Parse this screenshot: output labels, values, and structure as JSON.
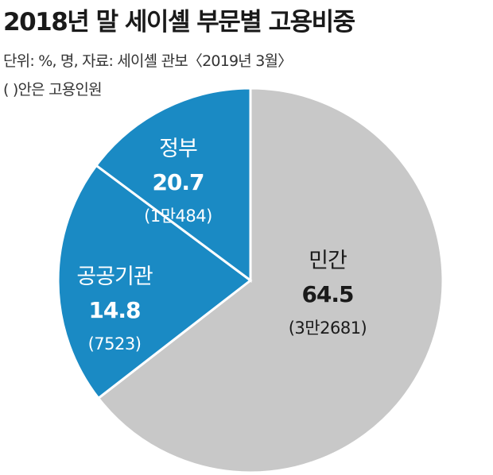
{
  "header": {
    "title": "2018년 말 세이셸 부문별 고용비중",
    "unit_source": "단위: %, 명, 자료: 세이셸 관보〈2019년 3월〉",
    "note": "(   )안은 고용인원"
  },
  "colors": {
    "private": "#c8c8c8",
    "public": "#1a8ac4",
    "divider": "#ffffff"
  },
  "chart_data": {
    "type": "pie",
    "title": "2018년 말 세이셸 부문별 고용비중",
    "slices": [
      {
        "key": "private",
        "label": "민간",
        "value": 64.5,
        "count_label": "(3만2681)",
        "color": "#c8c8c8"
      },
      {
        "key": "government",
        "label": "정부",
        "value": 20.7,
        "count_label": "(1만484)",
        "color": "#1a8ac4"
      },
      {
        "key": "public_institutions",
        "label": "공공기관",
        "value": 14.8,
        "count_label": "(7523)",
        "color": "#1a8ac4"
      }
    ]
  }
}
